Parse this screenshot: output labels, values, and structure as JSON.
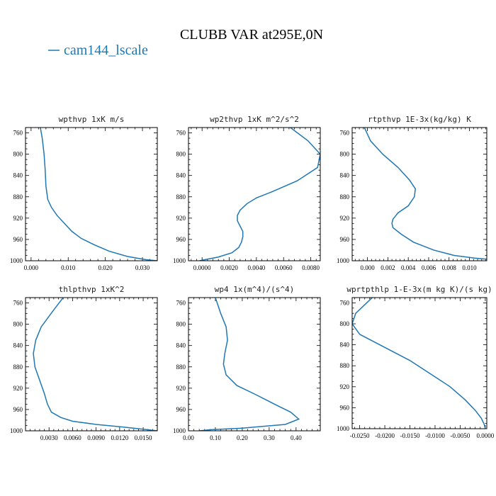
{
  "figure": {
    "title": "CLUBB VAR at295E,0N",
    "legend": {
      "label": "cam144_lscale",
      "color": "#1f77b4"
    }
  },
  "chart_data": [
    {
      "type": "line",
      "title": "wpthvp  1xK m/s",
      "xlim": [
        -0.0015,
        0.034
      ],
      "ylim": [
        1000,
        750
      ],
      "xticks": [
        0.0,
        0.01,
        0.02,
        0.03
      ],
      "xtick_labels": [
        "0.000",
        "0.010",
        "0.020",
        "0.030"
      ],
      "yticks": [
        760,
        800,
        840,
        880,
        920,
        960,
        1000
      ],
      "series": [
        {
          "color": "#1f77b4",
          "points": [
            [
              0.0025,
              750
            ],
            [
              0.003,
              770
            ],
            [
              0.0035,
              800
            ],
            [
              0.0038,
              830
            ],
            [
              0.004,
              860
            ],
            [
              0.0045,
              885
            ],
            [
              0.0055,
              900
            ],
            [
              0.007,
              915
            ],
            [
              0.009,
              930
            ],
            [
              0.011,
              945
            ],
            [
              0.0135,
              958
            ],
            [
              0.017,
              970
            ],
            [
              0.021,
              982
            ],
            [
              0.026,
              992
            ],
            [
              0.031,
              998
            ],
            [
              0.034,
              1000
            ]
          ]
        }
      ]
    },
    {
      "type": "line",
      "title": "wp2thvp  1xK m^2/s^2",
      "xlim": [
        -0.001,
        0.0087
      ],
      "ylim": [
        1000,
        750
      ],
      "xticks": [
        0.0,
        0.002,
        0.004,
        0.006,
        0.008
      ],
      "xtick_labels": [
        "0.0000",
        "0.0020",
        "0.0040",
        "0.0060",
        "0.0080"
      ],
      "yticks": [
        760,
        800,
        840,
        880,
        920,
        960,
        1000
      ],
      "series": [
        {
          "color": "#1f77b4",
          "points": [
            [
              0.0065,
              750
            ],
            [
              0.0078,
              775
            ],
            [
              0.0087,
              800
            ],
            [
              0.0085,
              825
            ],
            [
              0.007,
              850
            ],
            [
              0.0052,
              870
            ],
            [
              0.004,
              882
            ],
            [
              0.0033,
              893
            ],
            [
              0.0028,
              905
            ],
            [
              0.0026,
              915
            ],
            [
              0.0026,
              925
            ],
            [
              0.0028,
              935
            ],
            [
              0.003,
              945
            ],
            [
              0.003,
              955
            ],
            [
              0.0029,
              965
            ],
            [
              0.0027,
              975
            ],
            [
              0.0022,
              985
            ],
            [
              0.0012,
              993
            ],
            [
              0.0002,
              998
            ],
            [
              -0.0002,
              1000
            ]
          ]
        }
      ]
    },
    {
      "type": "line",
      "title": "rtpthvp  1E-3x(kg/kg) K",
      "xlim": [
        -0.0015,
        0.0117
      ],
      "ylim": [
        1000,
        750
      ],
      "xticks": [
        0.0,
        0.002,
        0.004,
        0.006,
        0.008,
        0.01
      ],
      "xtick_labels": [
        "0.000",
        "0.002",
        "0.004",
        "0.006",
        "0.008",
        "0.010"
      ],
      "yticks": [
        760,
        800,
        840,
        880,
        920,
        960,
        1000
      ],
      "series": [
        {
          "color": "#1f77b4",
          "points": [
            [
              -0.0003,
              750
            ],
            [
              0.0003,
              775
            ],
            [
              0.0015,
              800
            ],
            [
              0.003,
              825
            ],
            [
              0.0041,
              848
            ],
            [
              0.0047,
              865
            ],
            [
              0.0046,
              880
            ],
            [
              0.004,
              897
            ],
            [
              0.003,
              910
            ],
            [
              0.0025,
              922
            ],
            [
              0.0024,
              930
            ],
            [
              0.0025,
              938
            ],
            [
              0.0033,
              950
            ],
            [
              0.0045,
              965
            ],
            [
              0.0065,
              980
            ],
            [
              0.0085,
              990
            ],
            [
              0.0105,
              995
            ],
            [
              0.0117,
              997
            ]
          ]
        }
      ]
    },
    {
      "type": "line",
      "title": "thlpthvp  1xK^2",
      "xlim": [
        0.0,
        0.0168
      ],
      "ylim": [
        1000,
        750
      ],
      "xticks": [
        0.003,
        0.006,
        0.009,
        0.012,
        0.015
      ],
      "xtick_labels": [
        "0.0030",
        "0.0060",
        "0.0090",
        "0.0120",
        "0.0150"
      ],
      "yticks": [
        760,
        800,
        840,
        880,
        920,
        960,
        1000
      ],
      "series": [
        {
          "color": "#1f77b4",
          "points": [
            [
              0.0048,
              750
            ],
            [
              0.0035,
              775
            ],
            [
              0.002,
              805
            ],
            [
              0.0013,
              830
            ],
            [
              0.001,
              855
            ],
            [
              0.0012,
              880
            ],
            [
              0.0018,
              905
            ],
            [
              0.0024,
              930
            ],
            [
              0.0028,
              950
            ],
            [
              0.0033,
              965
            ],
            [
              0.0045,
              975
            ],
            [
              0.006,
              982
            ],
            [
              0.009,
              988
            ],
            [
              0.0125,
              993
            ],
            [
              0.015,
              997
            ],
            [
              0.0168,
              1000
            ]
          ]
        }
      ]
    },
    {
      "type": "line",
      "title": "wp4  1x(m^4)/(s^4)",
      "xlim": [
        0.0,
        0.49
      ],
      "ylim": [
        1000,
        750
      ],
      "xticks": [
        0.0,
        0.1,
        0.2,
        0.3,
        0.4
      ],
      "xtick_labels": [
        "0.00",
        "0.10",
        "0.20",
        "0.30",
        "0.40"
      ],
      "yticks": [
        760,
        800,
        840,
        880,
        920,
        960,
        1000
      ],
      "series": [
        {
          "color": "#1f77b4",
          "points": [
            [
              0.1,
              750
            ],
            [
              0.12,
              780
            ],
            [
              0.14,
              805
            ],
            [
              0.145,
              830
            ],
            [
              0.135,
              855
            ],
            [
              0.13,
              875
            ],
            [
              0.14,
              895
            ],
            [
              0.18,
              915
            ],
            [
              0.25,
              932
            ],
            [
              0.32,
              950
            ],
            [
              0.38,
              965
            ],
            [
              0.41,
              978
            ],
            [
              0.36,
              988
            ],
            [
              0.2,
              995
            ],
            [
              0.08,
              998
            ],
            [
              0.04,
              1000
            ]
          ]
        }
      ]
    },
    {
      "type": "line",
      "title": "wprtpthlp  1-E-3x(m kg K)/(s kg)",
      "xlim": [
        -0.0265,
        0.0003
      ],
      "ylim": [
        1000,
        750
      ],
      "xticks": [
        -0.025,
        -0.02,
        -0.015,
        -0.01,
        -0.005,
        0.0
      ],
      "xtick_labels": [
        "-0.0250",
        "-0.0200",
        "-0.0150",
        "-0.0100",
        "-0.0050",
        "0.0000"
      ],
      "yticks": [
        760,
        800,
        840,
        880,
        920,
        960,
        1000
      ],
      "series": [
        {
          "color": "#1f77b4",
          "points": [
            [
              -0.0225,
              750
            ],
            [
              -0.0258,
              780
            ],
            [
              -0.0265,
              800
            ],
            [
              -0.025,
              820
            ],
            [
              -0.02,
              845
            ],
            [
              -0.015,
              870
            ],
            [
              -0.011,
              895
            ],
            [
              -0.007,
              920
            ],
            [
              -0.004,
              945
            ],
            [
              -0.002,
              965
            ],
            [
              -0.0008,
              980
            ],
            [
              -0.0002,
              992
            ],
            [
              0.0,
              1000
            ]
          ]
        }
      ]
    }
  ]
}
